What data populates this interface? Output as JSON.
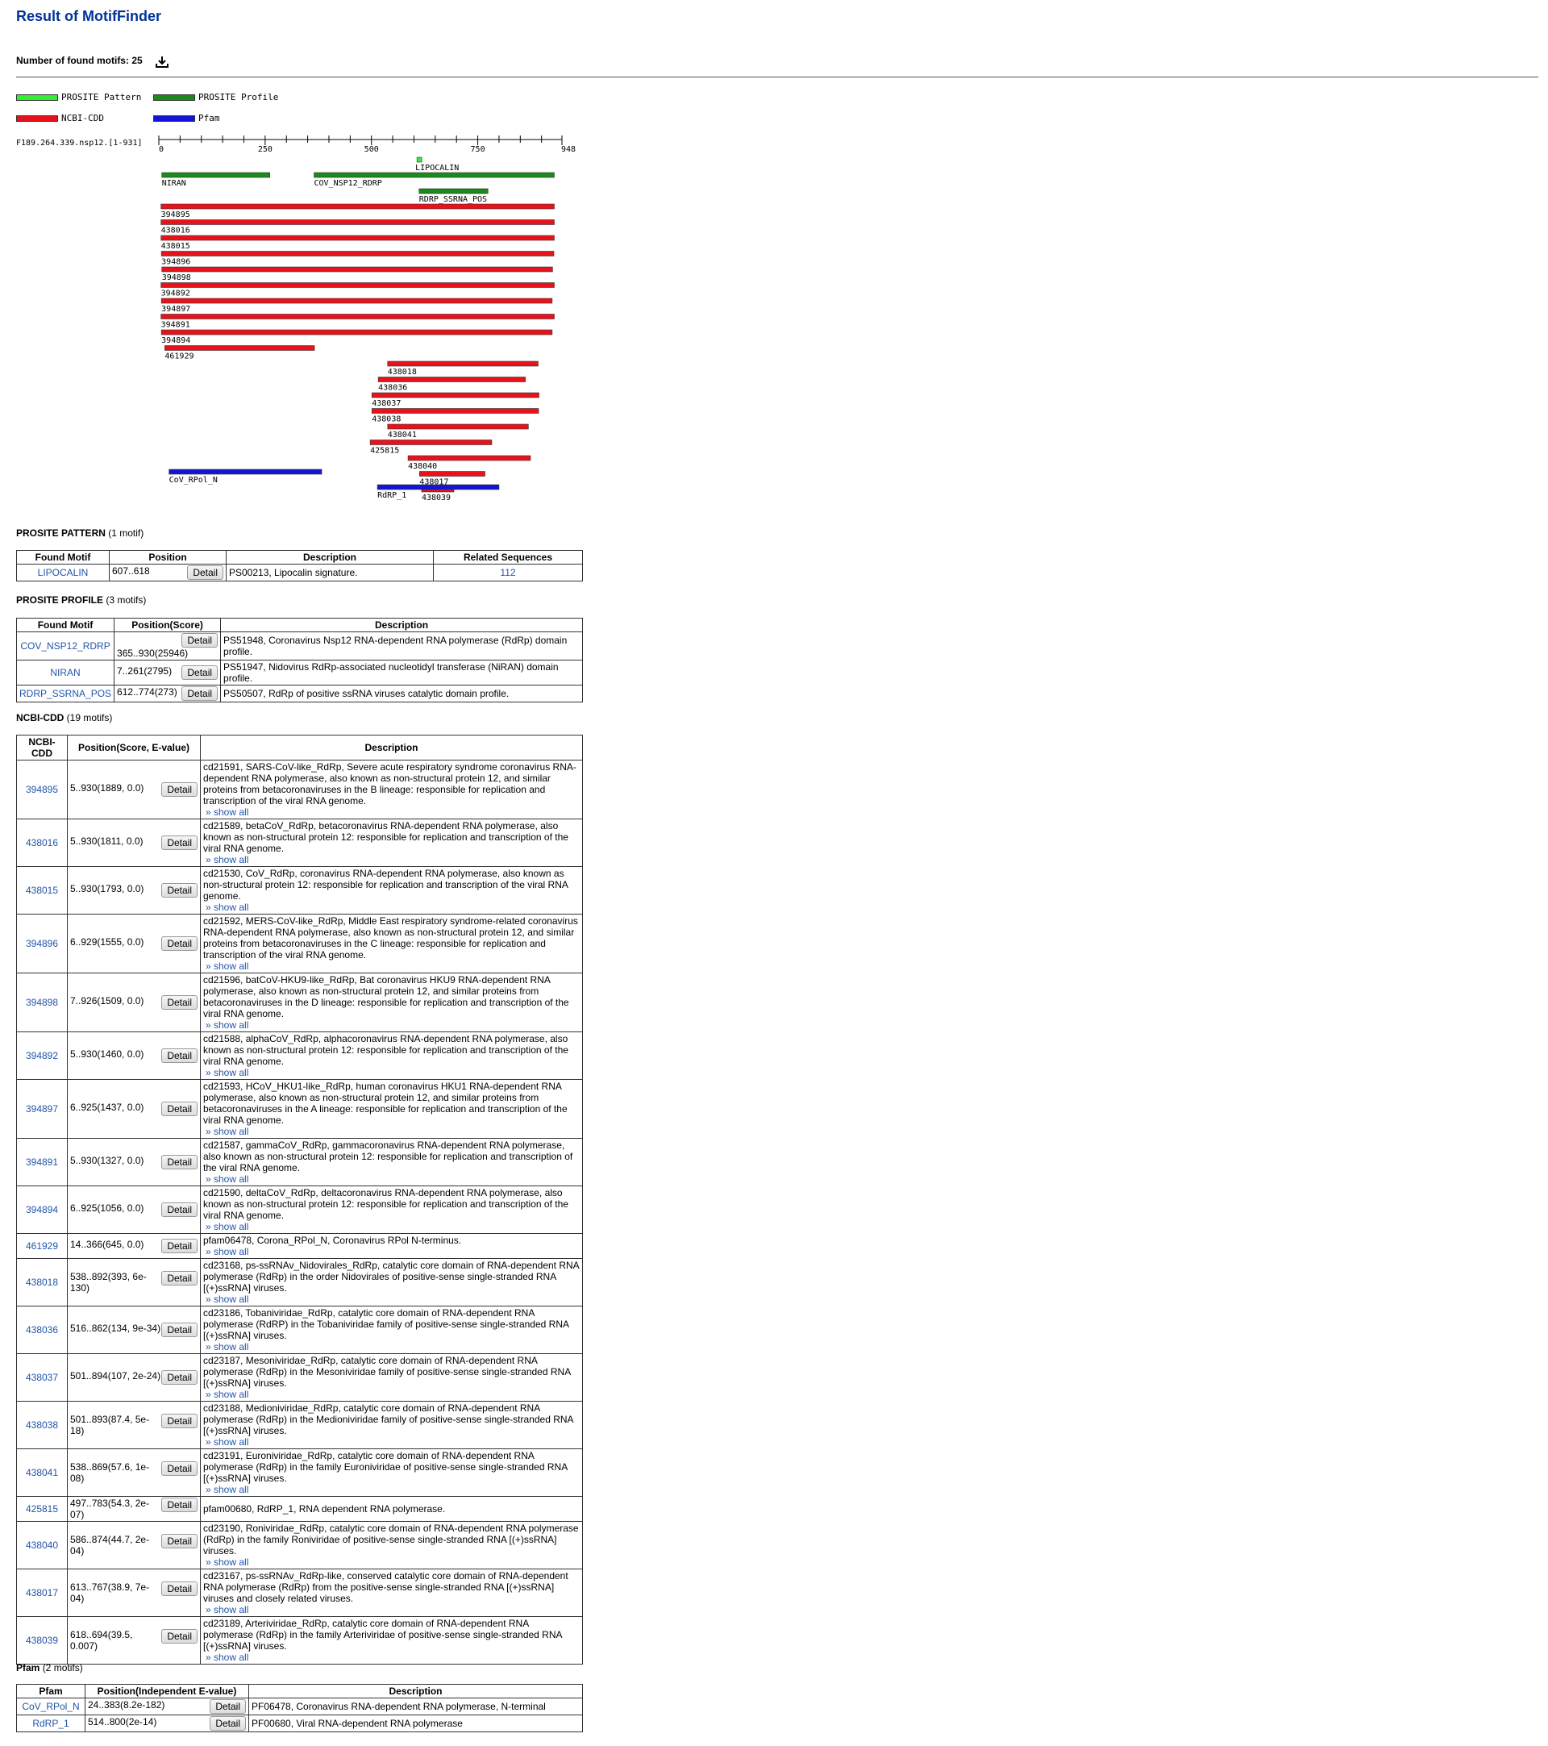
{
  "page": {
    "title": "Result of MotifFinder",
    "found_label": "Number of found motifs: 25"
  },
  "legend": [
    {
      "label": "PROSITE Pattern",
      "color": "#33ee33"
    },
    {
      "label": "PROSITE Profile",
      "color": "#1a8a1a"
    },
    {
      "label": "NCBI-CDD",
      "color": "#e8121b"
    },
    {
      "label": "Pfam",
      "color": "#1414d4"
    }
  ],
  "map": {
    "sequence_label": "F189.264.339.nsp12.[1-931]",
    "length": 948,
    "ticks": [
      0,
      250,
      500,
      750,
      948
    ],
    "tracks": [
      {
        "label": "LIPOCALIN",
        "start": 607,
        "end": 618,
        "type": "pattern"
      },
      {
        "label": "NIRAN",
        "start": 7,
        "end": 261,
        "type": "profile"
      },
      {
        "label": "COV_NSP12_RDRP",
        "start": 365,
        "end": 930,
        "type": "profile"
      },
      {
        "label": "RDRP_SSRNA_POS",
        "start": 612,
        "end": 774,
        "type": "profile"
      },
      {
        "label": "394895",
        "start": 5,
        "end": 930,
        "type": "cdd"
      },
      {
        "label": "438016",
        "start": 5,
        "end": 930,
        "type": "cdd"
      },
      {
        "label": "438015",
        "start": 5,
        "end": 930,
        "type": "cdd"
      },
      {
        "label": "394896",
        "start": 6,
        "end": 929,
        "type": "cdd"
      },
      {
        "label": "394898",
        "start": 7,
        "end": 926,
        "type": "cdd"
      },
      {
        "label": "394892",
        "start": 5,
        "end": 930,
        "type": "cdd"
      },
      {
        "label": "394897",
        "start": 6,
        "end": 925,
        "type": "cdd"
      },
      {
        "label": "394891",
        "start": 5,
        "end": 930,
        "type": "cdd"
      },
      {
        "label": "394894",
        "start": 6,
        "end": 925,
        "type": "cdd"
      },
      {
        "label": "461929",
        "start": 14,
        "end": 366,
        "type": "cdd"
      },
      {
        "label": "438018",
        "start": 538,
        "end": 892,
        "type": "cdd"
      },
      {
        "label": "438036",
        "start": 516,
        "end": 862,
        "type": "cdd"
      },
      {
        "label": "438037",
        "start": 501,
        "end": 894,
        "type": "cdd"
      },
      {
        "label": "438038",
        "start": 501,
        "end": 893,
        "type": "cdd"
      },
      {
        "label": "438041",
        "start": 538,
        "end": 869,
        "type": "cdd"
      },
      {
        "label": "425815",
        "start": 497,
        "end": 783,
        "type": "cdd"
      },
      {
        "label": "438040",
        "start": 586,
        "end": 874,
        "type": "cdd"
      },
      {
        "label": "438017",
        "start": 613,
        "end": 767,
        "type": "cdd"
      },
      {
        "label": "438039",
        "start": 618,
        "end": 694,
        "type": "cdd"
      },
      {
        "label": "CoV_RPol_N",
        "start": 24,
        "end": 383,
        "type": "pfam"
      },
      {
        "label": "RdRP_1",
        "start": 514,
        "end": 800,
        "type": "pfam"
      }
    ]
  },
  "pattern": {
    "title": "PROSITE PATTERN",
    "count": "(1 motif)",
    "headers": [
      "Found Motif",
      "Position",
      "Description",
      "Related Sequences"
    ],
    "rows": [
      {
        "motif": "LIPOCALIN",
        "position": "607..618",
        "desc": "PS00213, Lipocalin signature.",
        "related": "112"
      }
    ]
  },
  "profile": {
    "title": "PROSITE PROFILE",
    "count": "(3 motifs)",
    "headers": [
      "Found Motif",
      "Position(Score)",
      "Description"
    ],
    "rows": [
      {
        "motif": "COV_NSP12_RDRP",
        "position": "365..930(25946)",
        "desc": "PS51948, Coronavirus Nsp12 RNA-dependent RNA polymerase (RdRp) domain profile."
      },
      {
        "motif": "NIRAN",
        "position": "7..261(2795)",
        "desc": "PS51947, Nidovirus RdRp-associated nucleotidyl transferase (NiRAN) domain profile."
      },
      {
        "motif": "RDRP_SSRNA_POS",
        "position": "612..774(273)",
        "desc": "PS50507, RdRp of positive ssRNA viruses catalytic domain profile."
      }
    ]
  },
  "cdd": {
    "title": "NCBI-CDD",
    "count": "(19 motifs)",
    "headers": [
      "NCBI-CDD",
      "Position(Score, E-value)",
      "Description"
    ],
    "rows": [
      {
        "id": "394895",
        "position": "5..930(1889, 0.0)",
        "desc": "cd21591, SARS-CoV-like_RdRp, Severe acute respiratory syndrome coronavirus RNA-dependent RNA polymerase, also known as non-structural protein 12, and similar proteins from betacoronaviruses in the B lineage: responsible for replication and transcription of the viral RNA genome.",
        "show": "» show all"
      },
      {
        "id": "438016",
        "position": "5..930(1811, 0.0)",
        "desc": "cd21589, betaCoV_RdRp, betacoronavirus RNA-dependent RNA polymerase, also known as non-structural protein 12: responsible for replication and transcription of the viral RNA genome.",
        "show": "» show all"
      },
      {
        "id": "438015",
        "position": "5..930(1793, 0.0)",
        "desc": "cd21530, CoV_RdRp, coronavirus RNA-dependent RNA polymerase, also known as non-structural protein 12: responsible for replication and transcription of the viral RNA genome.",
        "show": "» show all"
      },
      {
        "id": "394896",
        "position": "6..929(1555, 0.0)",
        "desc": "cd21592, MERS-CoV-like_RdRp, Middle East respiratory syndrome-related coronavirus RNA-dependent RNA polymerase, also known as non-structural protein 12, and similar proteins from betacoronaviruses in the C lineage: responsible for replication and transcription of the viral RNA genome.",
        "show": "» show all"
      },
      {
        "id": "394898",
        "position": "7..926(1509, 0.0)",
        "desc": "cd21596, batCoV-HKU9-like_RdRp, Bat coronavirus HKU9 RNA-dependent RNA polymerase, also known as non-structural protein 12, and similar proteins from betacoronaviruses in the D lineage: responsible for replication and transcription of the viral RNA genome.",
        "show": "» show all"
      },
      {
        "id": "394892",
        "position": "5..930(1460, 0.0)",
        "desc": "cd21588, alphaCoV_RdRp, alphacoronavirus RNA-dependent RNA polymerase, also known as non-structural protein 12: responsible for replication and transcription of the viral RNA genome.",
        "show": "» show all"
      },
      {
        "id": "394897",
        "position": "6..925(1437, 0.0)",
        "desc": "cd21593, HCoV_HKU1-like_RdRp, human coronavirus HKU1 RNA-dependent RNA polymerase, also known as non-structural protein 12, and similar proteins from betacoronaviruses in the A lineage: responsible for replication and transcription of the viral RNA genome.",
        "show": "» show all"
      },
      {
        "id": "394891",
        "position": "5..930(1327, 0.0)",
        "desc": "cd21587, gammaCoV_RdRp, gammacoronavirus RNA-dependent RNA polymerase, also known as non-structural protein 12: responsible for replication and transcription of the viral RNA genome.",
        "show": "» show all"
      },
      {
        "id": "394894",
        "position": "6..925(1056, 0.0)",
        "desc": "cd21590, deltaCoV_RdRp, deltacoronavirus RNA-dependent RNA polymerase, also known as non-structural protein 12: responsible for replication and transcription of the viral RNA genome.",
        "show": "» show all"
      },
      {
        "id": "461929",
        "position": "14..366(645, 0.0)",
        "desc": "pfam06478, Corona_RPol_N, Coronavirus RPol N-terminus.",
        "show": "» show all"
      },
      {
        "id": "438018",
        "position": "538..892(393, 6e-130)",
        "desc": "cd23168, ps-ssRNAv_Nidovirales_RdRp, catalytic core domain of RNA-dependent RNA polymerase (RdRp) in the order Nidovirales of positive-sense single-stranded RNA [(+)ssRNA] viruses.",
        "show": "» show all"
      },
      {
        "id": "438036",
        "position": "516..862(134, 9e-34)",
        "desc": "cd23186, Tobaniviridae_RdRp, catalytic core domain of RNA-dependent RNA polymerase (RdRP) in the Tobaniviridae family of positive-sense single-stranded RNA [(+)ssRNA] viruses.",
        "show": "» show all"
      },
      {
        "id": "438037",
        "position": "501..894(107, 2e-24)",
        "desc": "cd23187, Mesoniviridae_RdRp, catalytic core domain of RNA-dependent RNA polymerase (RdRp) in the Mesoniviridae family of positive-sense single-stranded RNA [(+)ssRNA] viruses.",
        "show": "» show all"
      },
      {
        "id": "438038",
        "position": "501..893(87.4, 5e-18)",
        "desc": "cd23188, Medioniviridae_RdRp, catalytic core domain of RNA-dependent RNA polymerase (RdRp) in the Medioniviridae family of positive-sense single-stranded RNA [(+)ssRNA] viruses.",
        "show": "» show all"
      },
      {
        "id": "438041",
        "position": "538..869(57.6, 1e-08)",
        "desc": "cd23191, Euroniviridae_RdRp, catalytic core domain of RNA-dependent RNA polymerase (RdRp) in the family Euroniviridae of positive-sense single-stranded RNA [(+)ssRNA] viruses.",
        "show": "» show all"
      },
      {
        "id": "425815",
        "position": "497..783(54.3, 2e-07)",
        "desc": "pfam00680, RdRP_1, RNA dependent RNA polymerase.",
        "show": ""
      },
      {
        "id": "438040",
        "position": "586..874(44.7, 2e-04)",
        "desc": "cd23190, Roniviridae_RdRp, catalytic core domain of RNA-dependent RNA polymerase (RdRp) in the family Roniviridae of positive-sense single-stranded RNA [(+)ssRNA] viruses.",
        "show": "» show all"
      },
      {
        "id": "438017",
        "position": "613..767(38.9, 7e-04)",
        "desc": "cd23167, ps-ssRNAv_RdRp-like, conserved catalytic core domain of RNA-dependent RNA polymerase (RdRp) from the positive-sense single-stranded RNA [(+)ssRNA] viruses and closely related viruses.",
        "show": "» show all"
      },
      {
        "id": "438039",
        "position": "618..694(39.5, 0.007)",
        "desc": "cd23189, Arteriviridae_RdRp, catalytic core domain of RNA-dependent RNA polymerase (RdRp) in the family Arteriviridae of positive-sense single-stranded RNA [(+)ssRNA] viruses.",
        "show": "» show all"
      }
    ]
  },
  "pfam": {
    "title": "Pfam",
    "count": "(2 motifs)",
    "headers": [
      "Pfam",
      "Position(Independent E-value)",
      "Description"
    ],
    "rows": [
      {
        "id": "CoV_RPol_N",
        "position": "24..383(8.2e-182)",
        "desc": "PF06478, Coronavirus RNA-dependent RNA polymerase, N-terminal"
      },
      {
        "id": "RdRP_1",
        "position": "514..800(2e-14)",
        "desc": "PF00680, Viral RNA-dependent RNA polymerase"
      }
    ]
  },
  "detail_label": "Detail"
}
